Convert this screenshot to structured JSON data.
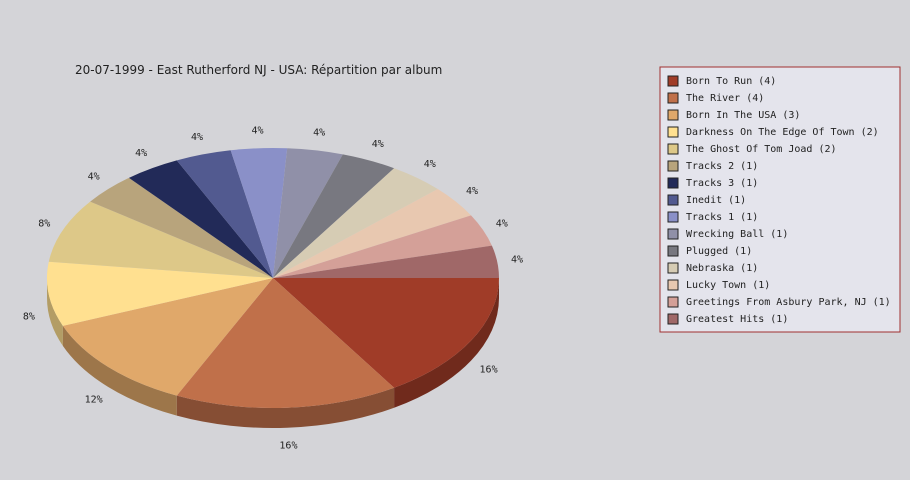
{
  "chart_data": {
    "type": "pie3d",
    "title": "20-07-1999 - East Rutherford NJ - USA:  Répartition par album",
    "categories": [
      "Born To Run (4)",
      "The River (4)",
      "Born In The USA (3)",
      "Darkness On The Edge Of Town (2)",
      "The Ghost Of Tom Joad (2)",
      "Tracks 2 (1)",
      "Tracks 3 (1)",
      "Inedit (1)",
      "Tracks 1 (1)",
      "Wrecking Ball (1)",
      "Plugged (1)",
      "Nebraska (1)",
      "Lucky Town (1)",
      "Greetings From Asbury Park, NJ (1)",
      "Greatest Hits (1)"
    ],
    "values": [
      16,
      16,
      12,
      8,
      8,
      4,
      4,
      4,
      4,
      4,
      4,
      4,
      4,
      4,
      4
    ],
    "value_labels": [
      "16%",
      "16%",
      "12%",
      "8%",
      "8%",
      "4%",
      "4%",
      "4%",
      "4%",
      "4%",
      "4%",
      "4%",
      "4%",
      "4%",
      "4%"
    ],
    "colors": [
      "#a03c28",
      "#c0704a",
      "#e0a86a",
      "#ffe090",
      "#ddc888",
      "#b8a47c",
      "#222a58",
      "#525a90",
      "#8a90c8",
      "#9090a8",
      "#787880",
      "#d6ccb4",
      "#e8c8b0",
      "#d4a098",
      "#a06868"
    ]
  }
}
